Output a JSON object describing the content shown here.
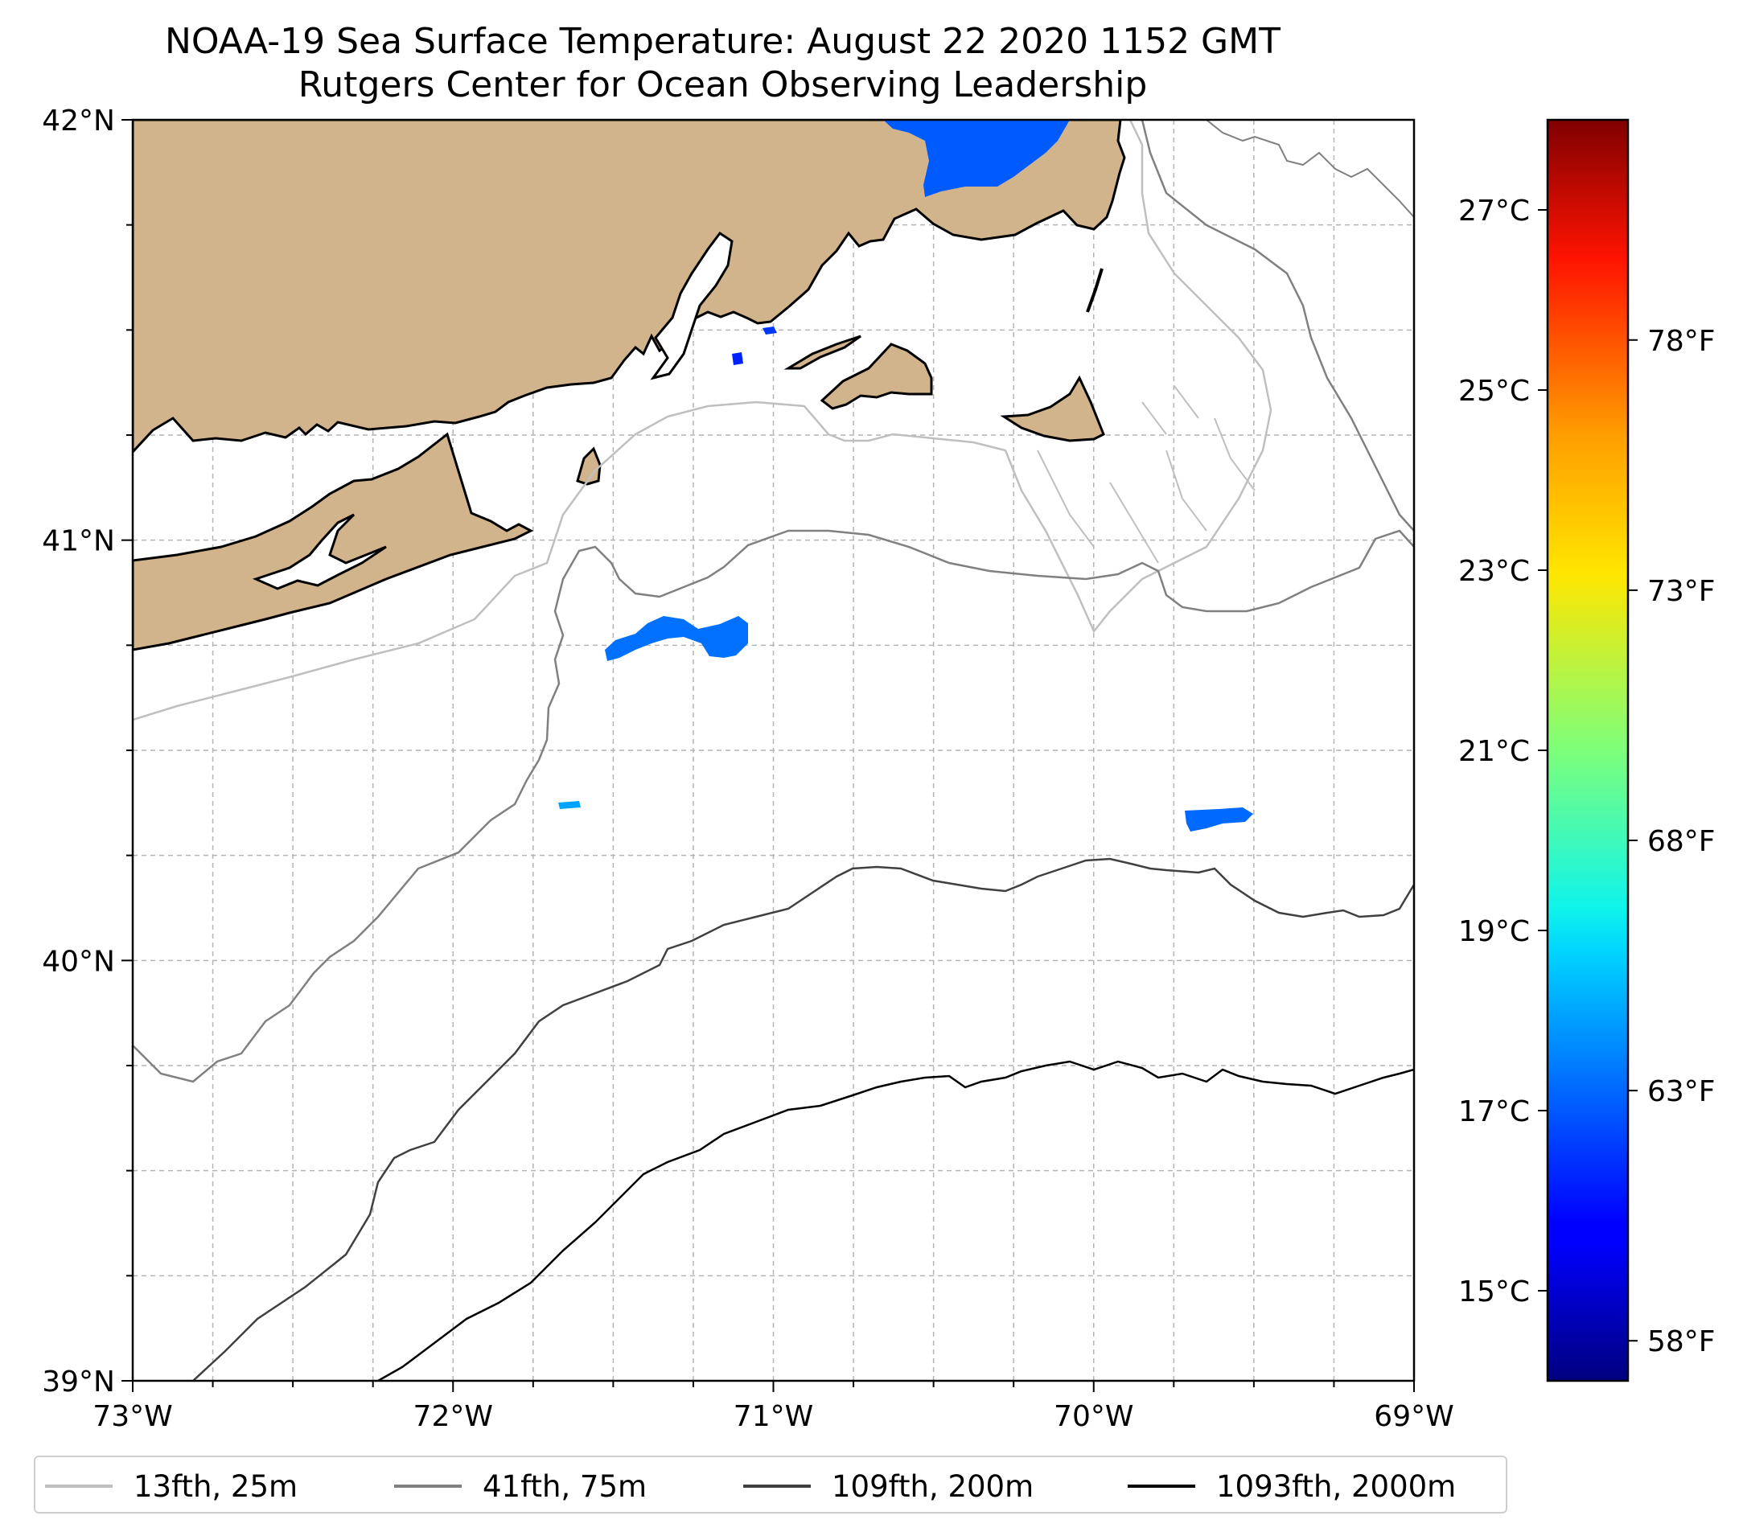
{
  "title": {
    "line1": "NOAA-19 Sea Surface Temperature: August 22 2020 1152 GMT",
    "line2": "Rutgers Center for Ocean Observing Leadership"
  },
  "map": {
    "lon_range": [
      -73,
      -69
    ],
    "lat_range": [
      39,
      42
    ],
    "x_ticks": [
      {
        "value": -73,
        "label": "73°W"
      },
      {
        "value": -72,
        "label": "72°W"
      },
      {
        "value": -71,
        "label": "71°W"
      },
      {
        "value": -70,
        "label": "70°W"
      },
      {
        "value": -69,
        "label": "69°W"
      }
    ],
    "y_ticks": [
      {
        "value": 42,
        "label": "42°N"
      },
      {
        "value": 41,
        "label": "41°N"
      },
      {
        "value": 40,
        "label": "40°N"
      },
      {
        "value": 39,
        "label": "39°N"
      }
    ],
    "gridlines": "dashed",
    "land_color": "#d2b48c",
    "coastline_color": "#000000"
  },
  "colorbar": {
    "colormap": "jet",
    "celsius_range": [
      14,
      28
    ],
    "celsius_ticks": [
      {
        "value": 27,
        "label": "27°C"
      },
      {
        "value": 25,
        "label": "25°C"
      },
      {
        "value": 23,
        "label": "23°C"
      },
      {
        "value": 21,
        "label": "21°C"
      },
      {
        "value": 19,
        "label": "19°C"
      },
      {
        "value": 17,
        "label": "17°C"
      },
      {
        "value": 15,
        "label": "15°C"
      }
    ],
    "fahrenheit_ticks": [
      {
        "value": 78,
        "label": "78°F"
      },
      {
        "value": 73,
        "label": "73°F"
      },
      {
        "value": 68,
        "label": "68°F"
      },
      {
        "value": 63,
        "label": "63°F"
      },
      {
        "value": 58,
        "label": "58°F"
      }
    ]
  },
  "legend": {
    "entries": [
      {
        "label": "13fth, 25m",
        "color": "#bfbfbf"
      },
      {
        "label": "41fth, 75m",
        "color": "#808080"
      },
      {
        "label": "109fth, 200m",
        "color": "#404040"
      },
      {
        "label": "1093fth, 2000m",
        "color": "#000000"
      }
    ]
  },
  "sst_patches": [
    {
      "name": "cape-cod-bay",
      "temp_c": 17.0
    },
    {
      "name": "southeast-of-block-island",
      "temp_c": 17.3
    },
    {
      "name": "shelf-break-east",
      "temp_c": 17.2
    },
    {
      "name": "shelf-break-west",
      "temp_c": 18.0
    },
    {
      "name": "buzzards-bay",
      "temp_c": 16.5
    },
    {
      "name": "rhode-island-sound",
      "temp_c": 16.2
    }
  ]
}
